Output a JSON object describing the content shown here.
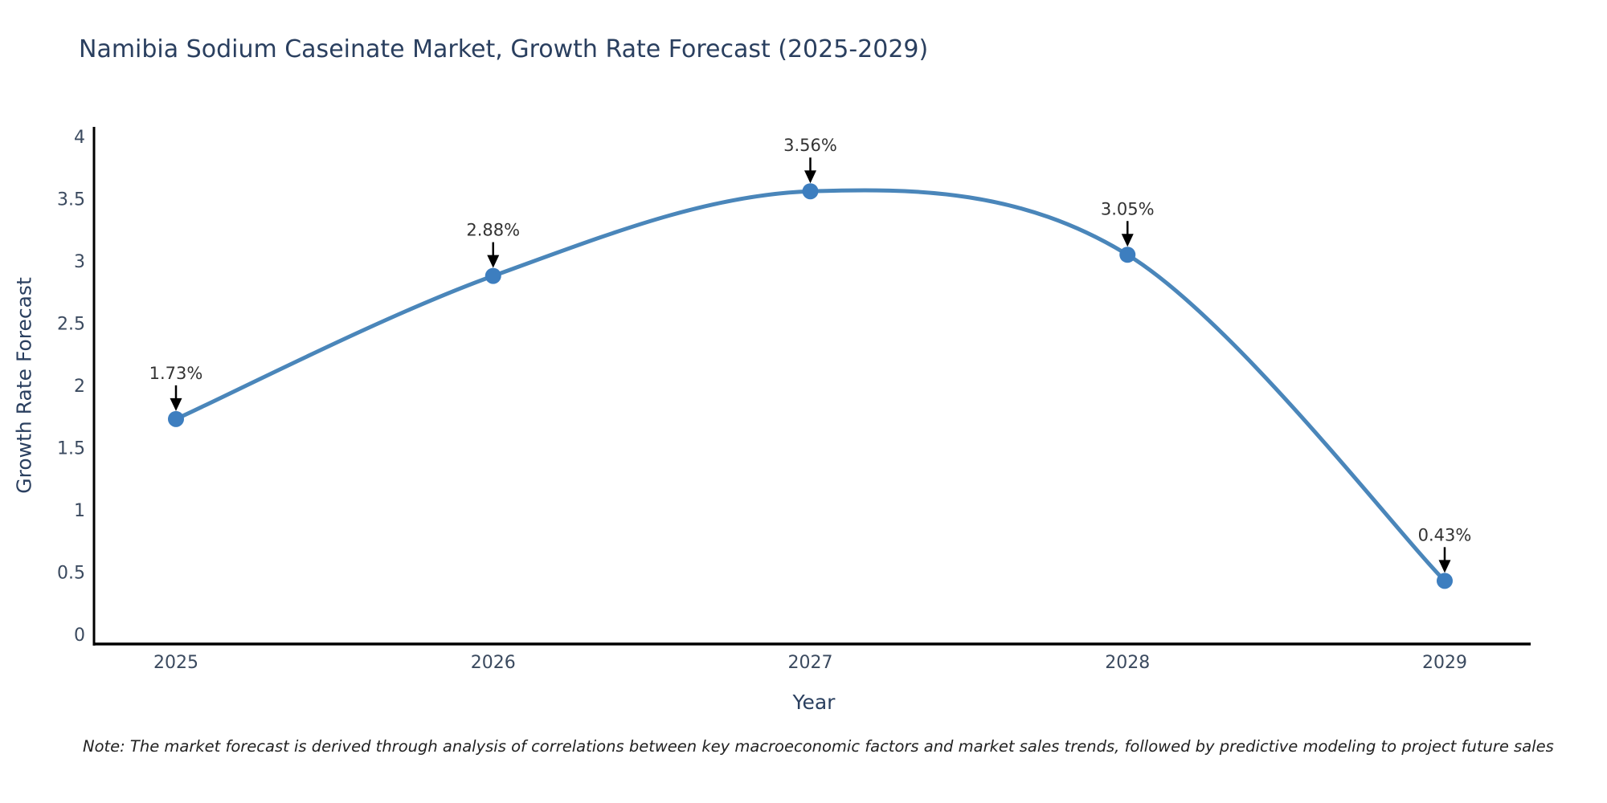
{
  "chart_data": {
    "type": "line",
    "title": "Namibia Sodium Caseinate Market, Growth Rate Forecast (2025-2029)",
    "xlabel": "Year",
    "ylabel": "Growth Rate Forecast",
    "categories": [
      "2025",
      "2026",
      "2027",
      "2028",
      "2029"
    ],
    "values": [
      1.73,
      2.88,
      3.56,
      3.05,
      0.43
    ],
    "point_labels": [
      "1.73%",
      "2.88%",
      "3.05%",
      "0.43%"
    ],
    "series": [
      {
        "name": "Growth Rate Forecast",
        "values": [
          1.73,
          2.88,
          3.56,
          3.05,
          0.43
        ]
      }
    ],
    "point_labels_full": [
      "1.73%",
      "2.88%",
      "3.56%",
      "3.05%",
      "0.43%"
    ],
    "yticks": [
      0,
      0.5,
      1,
      1.5,
      2,
      2.5,
      3,
      3.5,
      4
    ],
    "ytick_labels": [
      "0",
      "0.5",
      "1",
      "1.5",
      "2",
      "2.5",
      "3",
      "3.5",
      "4"
    ],
    "ylim": [
      0,
      4
    ],
    "grid": false,
    "legend_position": "none",
    "line_shape": "spline",
    "colors": {
      "line": "#4a86ba",
      "marker": "#3d7ebf",
      "axis": "#000000",
      "title_text": "#2a3f5f",
      "tick_text": "#3b4a5f",
      "annotation_text": "#333333",
      "arrow": "#000000",
      "background": "#ffffff"
    }
  },
  "note": "Note: The market forecast is derived through analysis of correlations between key macroeconomic factors and market sales trends, followed by predictive modeling to project future sales"
}
